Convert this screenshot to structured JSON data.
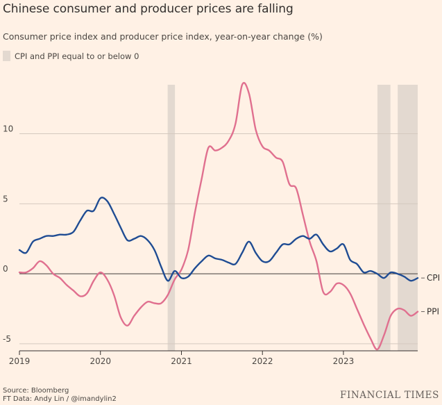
{
  "header": {
    "title": "Chinese consumer and producer prices are falling",
    "subtitle": "Consumer price index and producer price index, year-on-year change (%)",
    "legend_label": "CPI and PPI equal to or below 0"
  },
  "footer": {
    "source": "Source: Bloomberg",
    "credit": "FT Data: Andy Lin / @imandylin2",
    "brand": "FINANCIAL TIMES"
  },
  "colors": {
    "cpi": "#1f4c93",
    "ppi": "#e0708f",
    "shade": "#e3d9d0",
    "grid": "#d4c9bf",
    "zero": "#66605c",
    "background": "#fff1e5"
  },
  "chart_data": {
    "type": "line",
    "title": "Chinese consumer and producer prices are falling",
    "ylabel": "%",
    "xlim": [
      2019.0,
      2023.917
    ],
    "ylim": [
      -5.5,
      13.5
    ],
    "y_ticks": [
      -5,
      0,
      5,
      10
    ],
    "y_tick_labels": [
      "-5",
      "0",
      "5",
      "10"
    ],
    "x_ticks": [
      2019,
      2020,
      2021,
      2022,
      2023
    ],
    "x_tick_labels": [
      "2019",
      "2020",
      "2021",
      "2022",
      "2023"
    ],
    "shaded_periods": [
      {
        "start": 2020.83,
        "end": 2020.92
      },
      {
        "start": 2023.42,
        "end": 2023.58
      },
      {
        "start": 2023.67,
        "end": 2023.917
      }
    ],
    "series": [
      {
        "name": "CPI",
        "end_label": "CPI",
        "x": [
          2019.0,
          2019.083,
          2019.167,
          2019.25,
          2019.333,
          2019.417,
          2019.5,
          2019.583,
          2019.667,
          2019.75,
          2019.833,
          2019.917,
          2020.0,
          2020.083,
          2020.167,
          2020.25,
          2020.333,
          2020.417,
          2020.5,
          2020.583,
          2020.667,
          2020.75,
          2020.833,
          2020.917,
          2021.0,
          2021.083,
          2021.167,
          2021.25,
          2021.333,
          2021.417,
          2021.5,
          2021.583,
          2021.667,
          2021.75,
          2021.833,
          2021.917,
          2022.0,
          2022.083,
          2022.167,
          2022.25,
          2022.333,
          2022.417,
          2022.5,
          2022.583,
          2022.667,
          2022.75,
          2022.833,
          2022.917,
          2023.0,
          2023.083,
          2023.167,
          2023.25,
          2023.333,
          2023.417,
          2023.5,
          2023.583,
          2023.667,
          2023.75,
          2023.833,
          2023.917
        ],
        "values": [
          1.7,
          1.5,
          2.3,
          2.5,
          2.7,
          2.7,
          2.8,
          2.8,
          3.0,
          3.8,
          4.5,
          4.5,
          5.4,
          5.2,
          4.3,
          3.3,
          2.4,
          2.5,
          2.7,
          2.4,
          1.7,
          0.5,
          -0.5,
          0.2,
          -0.3,
          -0.2,
          0.4,
          0.9,
          1.3,
          1.1,
          1.0,
          0.8,
          0.7,
          1.5,
          2.3,
          1.5,
          0.9,
          0.9,
          1.5,
          2.1,
          2.1,
          2.5,
          2.7,
          2.5,
          2.8,
          2.1,
          1.6,
          1.8,
          2.1,
          1.0,
          0.7,
          0.1,
          0.2,
          0.0,
          -0.3,
          0.1,
          0.0,
          -0.2,
          -0.5,
          -0.3
        ]
      },
      {
        "name": "PPI",
        "end_label": "PPI",
        "x": [
          2019.0,
          2019.083,
          2019.167,
          2019.25,
          2019.333,
          2019.417,
          2019.5,
          2019.583,
          2019.667,
          2019.75,
          2019.833,
          2019.917,
          2020.0,
          2020.083,
          2020.167,
          2020.25,
          2020.333,
          2020.417,
          2020.5,
          2020.583,
          2020.667,
          2020.75,
          2020.833,
          2020.917,
          2021.0,
          2021.083,
          2021.167,
          2021.25,
          2021.333,
          2021.417,
          2021.5,
          2021.583,
          2021.667,
          2021.75,
          2021.833,
          2021.917,
          2022.0,
          2022.083,
          2022.167,
          2022.25,
          2022.333,
          2022.417,
          2022.5,
          2022.583,
          2022.667,
          2022.75,
          2022.833,
          2022.917,
          2023.0,
          2023.083,
          2023.167,
          2023.25,
          2023.333,
          2023.417,
          2023.5,
          2023.583,
          2023.667,
          2023.75,
          2023.833,
          2023.917
        ],
        "values": [
          0.1,
          0.1,
          0.4,
          0.9,
          0.6,
          0.0,
          -0.3,
          -0.8,
          -1.2,
          -1.6,
          -1.4,
          -0.5,
          0.1,
          -0.4,
          -1.5,
          -3.1,
          -3.7,
          -3.0,
          -2.4,
          -2.0,
          -2.1,
          -2.1,
          -1.5,
          -0.4,
          0.3,
          1.7,
          4.4,
          6.8,
          9.0,
          8.8,
          9.0,
          9.5,
          10.7,
          13.5,
          12.9,
          10.3,
          9.1,
          8.8,
          8.3,
          8.0,
          6.4,
          6.1,
          4.2,
          2.3,
          0.9,
          -1.3,
          -1.3,
          -0.7,
          -0.8,
          -1.4,
          -2.5,
          -3.6,
          -4.6,
          -5.4,
          -4.4,
          -3.0,
          -2.5,
          -2.6,
          -3.0,
          -2.7
        ]
      }
    ]
  }
}
